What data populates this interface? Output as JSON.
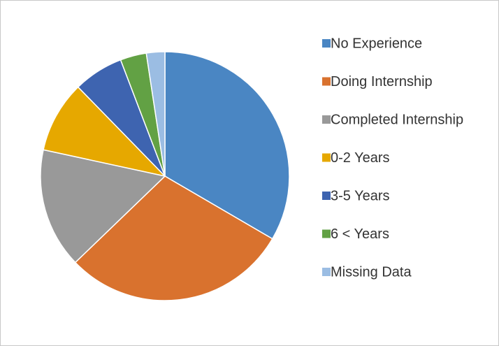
{
  "chart_data": {
    "type": "pie",
    "categories": [
      "No Experience",
      "Doing Internship",
      "Completed Internship",
      "0-2 Years",
      "3-5 Years",
      "6 < Years",
      "Missing Data"
    ],
    "values": [
      33.4,
      29.4,
      15.6,
      9.3,
      6.5,
      3.4,
      2.4
    ],
    "colors": [
      "#4a86c3",
      "#d9722e",
      "#999999",
      "#e6a800",
      "#3e64b0",
      "#62a144",
      "#9bbde3"
    ],
    "legend": "right"
  }
}
